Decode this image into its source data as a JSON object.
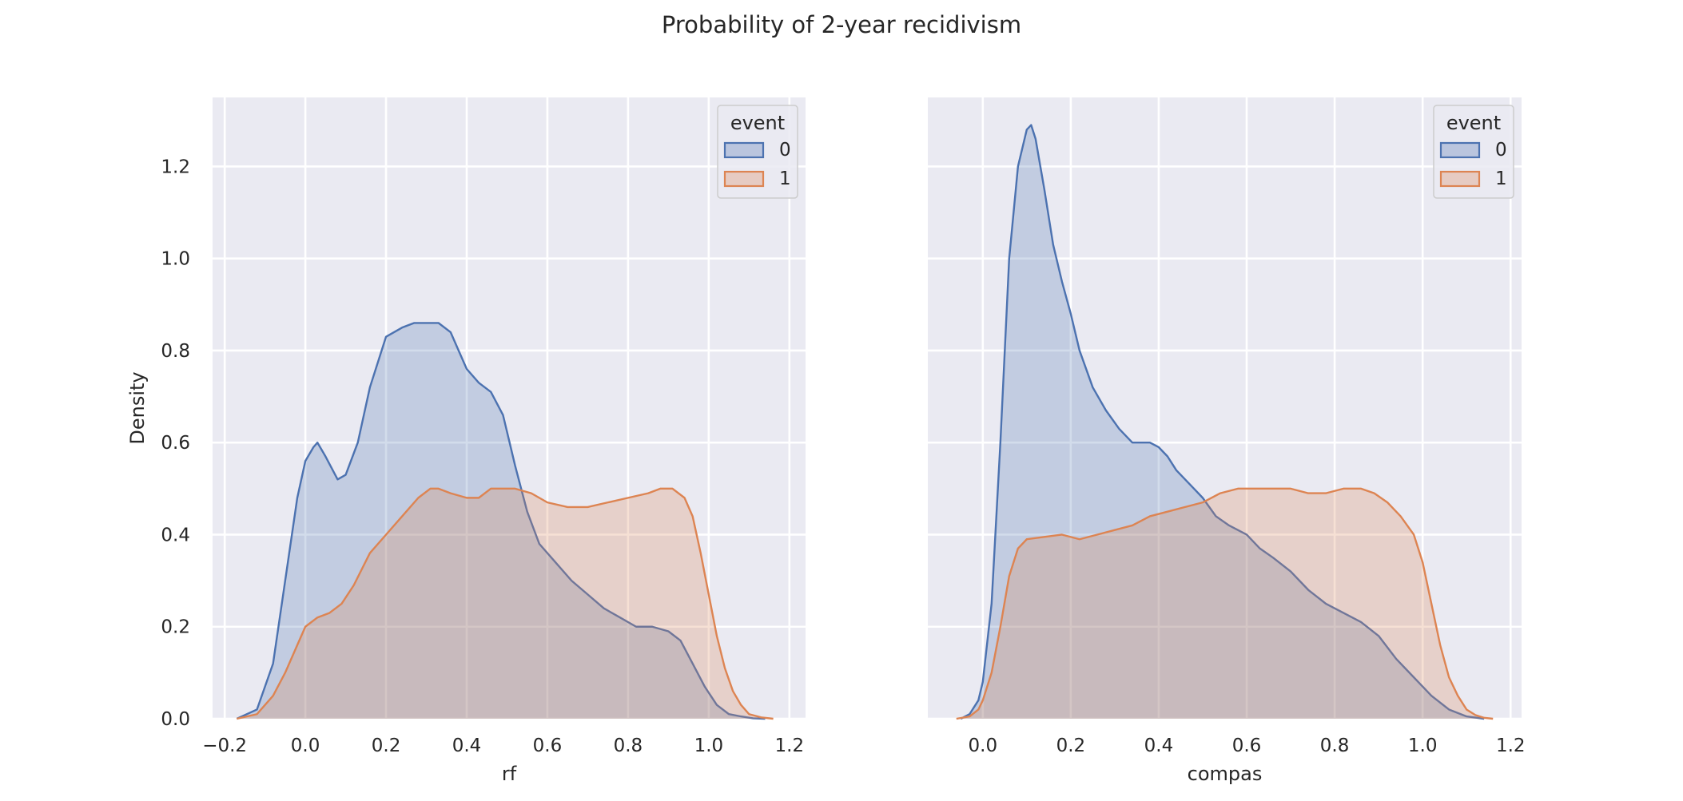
{
  "figure": {
    "title": "Probability of 2-year recidivism"
  },
  "chart_data": [
    {
      "type": "area",
      "kind": "kde",
      "xlabel": "rf",
      "ylabel": "Density",
      "xlim": [
        -0.23,
        1.24
      ],
      "ylim": [
        0,
        1.35
      ],
      "xticks": [
        -0.2,
        0.0,
        0.2,
        0.4,
        0.6,
        0.8,
        1.0,
        1.2
      ],
      "xtick_labels": [
        "−0.2",
        "0.0",
        "0.2",
        "0.4",
        "0.6",
        "0.8",
        "1.0",
        "1.2"
      ],
      "yticks": [
        0.0,
        0.2,
        0.4,
        0.6,
        0.8,
        1.0,
        1.2
      ],
      "ytick_labels": [
        "0.0",
        "0.2",
        "0.4",
        "0.6",
        "0.8",
        "1.0",
        "1.2"
      ],
      "grid": true,
      "legend": {
        "title": "event",
        "placement": "top-right",
        "entries": [
          "0",
          "1"
        ]
      },
      "series": [
        {
          "name": "0",
          "color": "#4c72b0",
          "x": [
            -0.17,
            -0.12,
            -0.08,
            -0.05,
            -0.02,
            0.0,
            0.02,
            0.03,
            0.05,
            0.08,
            0.1,
            0.13,
            0.16,
            0.2,
            0.24,
            0.27,
            0.3,
            0.33,
            0.36,
            0.38,
            0.4,
            0.43,
            0.46,
            0.49,
            0.52,
            0.55,
            0.58,
            0.62,
            0.66,
            0.7,
            0.74,
            0.78,
            0.82,
            0.86,
            0.9,
            0.93,
            0.96,
            0.99,
            1.02,
            1.05,
            1.08,
            1.11,
            1.14
          ],
          "y": [
            0.0,
            0.02,
            0.12,
            0.3,
            0.48,
            0.56,
            0.59,
            0.6,
            0.57,
            0.52,
            0.53,
            0.6,
            0.72,
            0.83,
            0.85,
            0.86,
            0.86,
            0.86,
            0.84,
            0.8,
            0.76,
            0.73,
            0.71,
            0.66,
            0.55,
            0.45,
            0.38,
            0.34,
            0.3,
            0.27,
            0.24,
            0.22,
            0.2,
            0.2,
            0.19,
            0.17,
            0.12,
            0.07,
            0.03,
            0.01,
            0.005,
            0.001,
            0.0
          ]
        },
        {
          "name": "1",
          "color": "#dd8452",
          "x": [
            -0.17,
            -0.12,
            -0.08,
            -0.05,
            -0.02,
            0.0,
            0.03,
            0.06,
            0.09,
            0.12,
            0.16,
            0.2,
            0.24,
            0.28,
            0.31,
            0.33,
            0.36,
            0.4,
            0.43,
            0.46,
            0.49,
            0.52,
            0.56,
            0.6,
            0.65,
            0.7,
            0.75,
            0.8,
            0.85,
            0.88,
            0.91,
            0.94,
            0.96,
            0.98,
            1.0,
            1.02,
            1.04,
            1.06,
            1.08,
            1.1,
            1.13,
            1.16
          ],
          "y": [
            0.0,
            0.01,
            0.05,
            0.1,
            0.16,
            0.2,
            0.22,
            0.23,
            0.25,
            0.29,
            0.36,
            0.4,
            0.44,
            0.48,
            0.5,
            0.5,
            0.49,
            0.48,
            0.48,
            0.5,
            0.5,
            0.5,
            0.49,
            0.47,
            0.46,
            0.46,
            0.47,
            0.48,
            0.49,
            0.5,
            0.5,
            0.48,
            0.44,
            0.36,
            0.27,
            0.18,
            0.11,
            0.06,
            0.03,
            0.01,
            0.003,
            0.0
          ]
        }
      ]
    },
    {
      "type": "area",
      "kind": "kde",
      "xlabel": "compas",
      "ylabel": "",
      "xlim": [
        -0.125,
        1.225
      ],
      "ylim": [
        0,
        1.35
      ],
      "xticks": [
        0.0,
        0.2,
        0.4,
        0.6,
        0.8,
        1.0,
        1.2
      ],
      "xtick_labels": [
        "0.0",
        "0.2",
        "0.4",
        "0.6",
        "0.8",
        "1.0",
        "1.2"
      ],
      "yticks": [
        0.0,
        0.2,
        0.4,
        0.6,
        0.8,
        1.0,
        1.2
      ],
      "grid": true,
      "legend": {
        "title": "event",
        "placement": "top-right",
        "entries": [
          "0",
          "1"
        ]
      },
      "series": [
        {
          "name": "0",
          "color": "#4c72b0",
          "x": [
            -0.05,
            -0.03,
            -0.01,
            0.0,
            0.02,
            0.04,
            0.06,
            0.08,
            0.1,
            0.11,
            0.12,
            0.14,
            0.16,
            0.18,
            0.2,
            0.22,
            0.25,
            0.28,
            0.31,
            0.34,
            0.36,
            0.38,
            0.4,
            0.42,
            0.44,
            0.46,
            0.48,
            0.5,
            0.53,
            0.56,
            0.6,
            0.63,
            0.66,
            0.7,
            0.74,
            0.78,
            0.82,
            0.86,
            0.9,
            0.94,
            0.98,
            1.02,
            1.06,
            1.1,
            1.14
          ],
          "y": [
            0.0,
            0.01,
            0.04,
            0.08,
            0.25,
            0.6,
            1.0,
            1.2,
            1.28,
            1.29,
            1.26,
            1.15,
            1.03,
            0.95,
            0.88,
            0.8,
            0.72,
            0.67,
            0.63,
            0.6,
            0.6,
            0.6,
            0.59,
            0.57,
            0.54,
            0.52,
            0.5,
            0.48,
            0.44,
            0.42,
            0.4,
            0.37,
            0.35,
            0.32,
            0.28,
            0.25,
            0.23,
            0.21,
            0.18,
            0.13,
            0.09,
            0.05,
            0.02,
            0.005,
            0.0
          ]
        },
        {
          "name": "1",
          "color": "#dd8452",
          "x": [
            -0.06,
            -0.03,
            -0.01,
            0.0,
            0.02,
            0.04,
            0.06,
            0.08,
            0.1,
            0.14,
            0.18,
            0.22,
            0.26,
            0.3,
            0.34,
            0.38,
            0.42,
            0.46,
            0.5,
            0.54,
            0.58,
            0.62,
            0.66,
            0.7,
            0.74,
            0.78,
            0.82,
            0.86,
            0.89,
            0.92,
            0.95,
            0.98,
            1.0,
            1.02,
            1.04,
            1.06,
            1.08,
            1.1,
            1.12,
            1.14,
            1.16
          ],
          "y": [
            0.0,
            0.005,
            0.02,
            0.04,
            0.1,
            0.2,
            0.31,
            0.37,
            0.39,
            0.395,
            0.4,
            0.39,
            0.4,
            0.41,
            0.42,
            0.44,
            0.45,
            0.46,
            0.47,
            0.49,
            0.5,
            0.5,
            0.5,
            0.5,
            0.49,
            0.49,
            0.5,
            0.5,
            0.49,
            0.47,
            0.44,
            0.4,
            0.34,
            0.25,
            0.16,
            0.09,
            0.05,
            0.02,
            0.008,
            0.002,
            0.0
          ]
        }
      ]
    }
  ]
}
